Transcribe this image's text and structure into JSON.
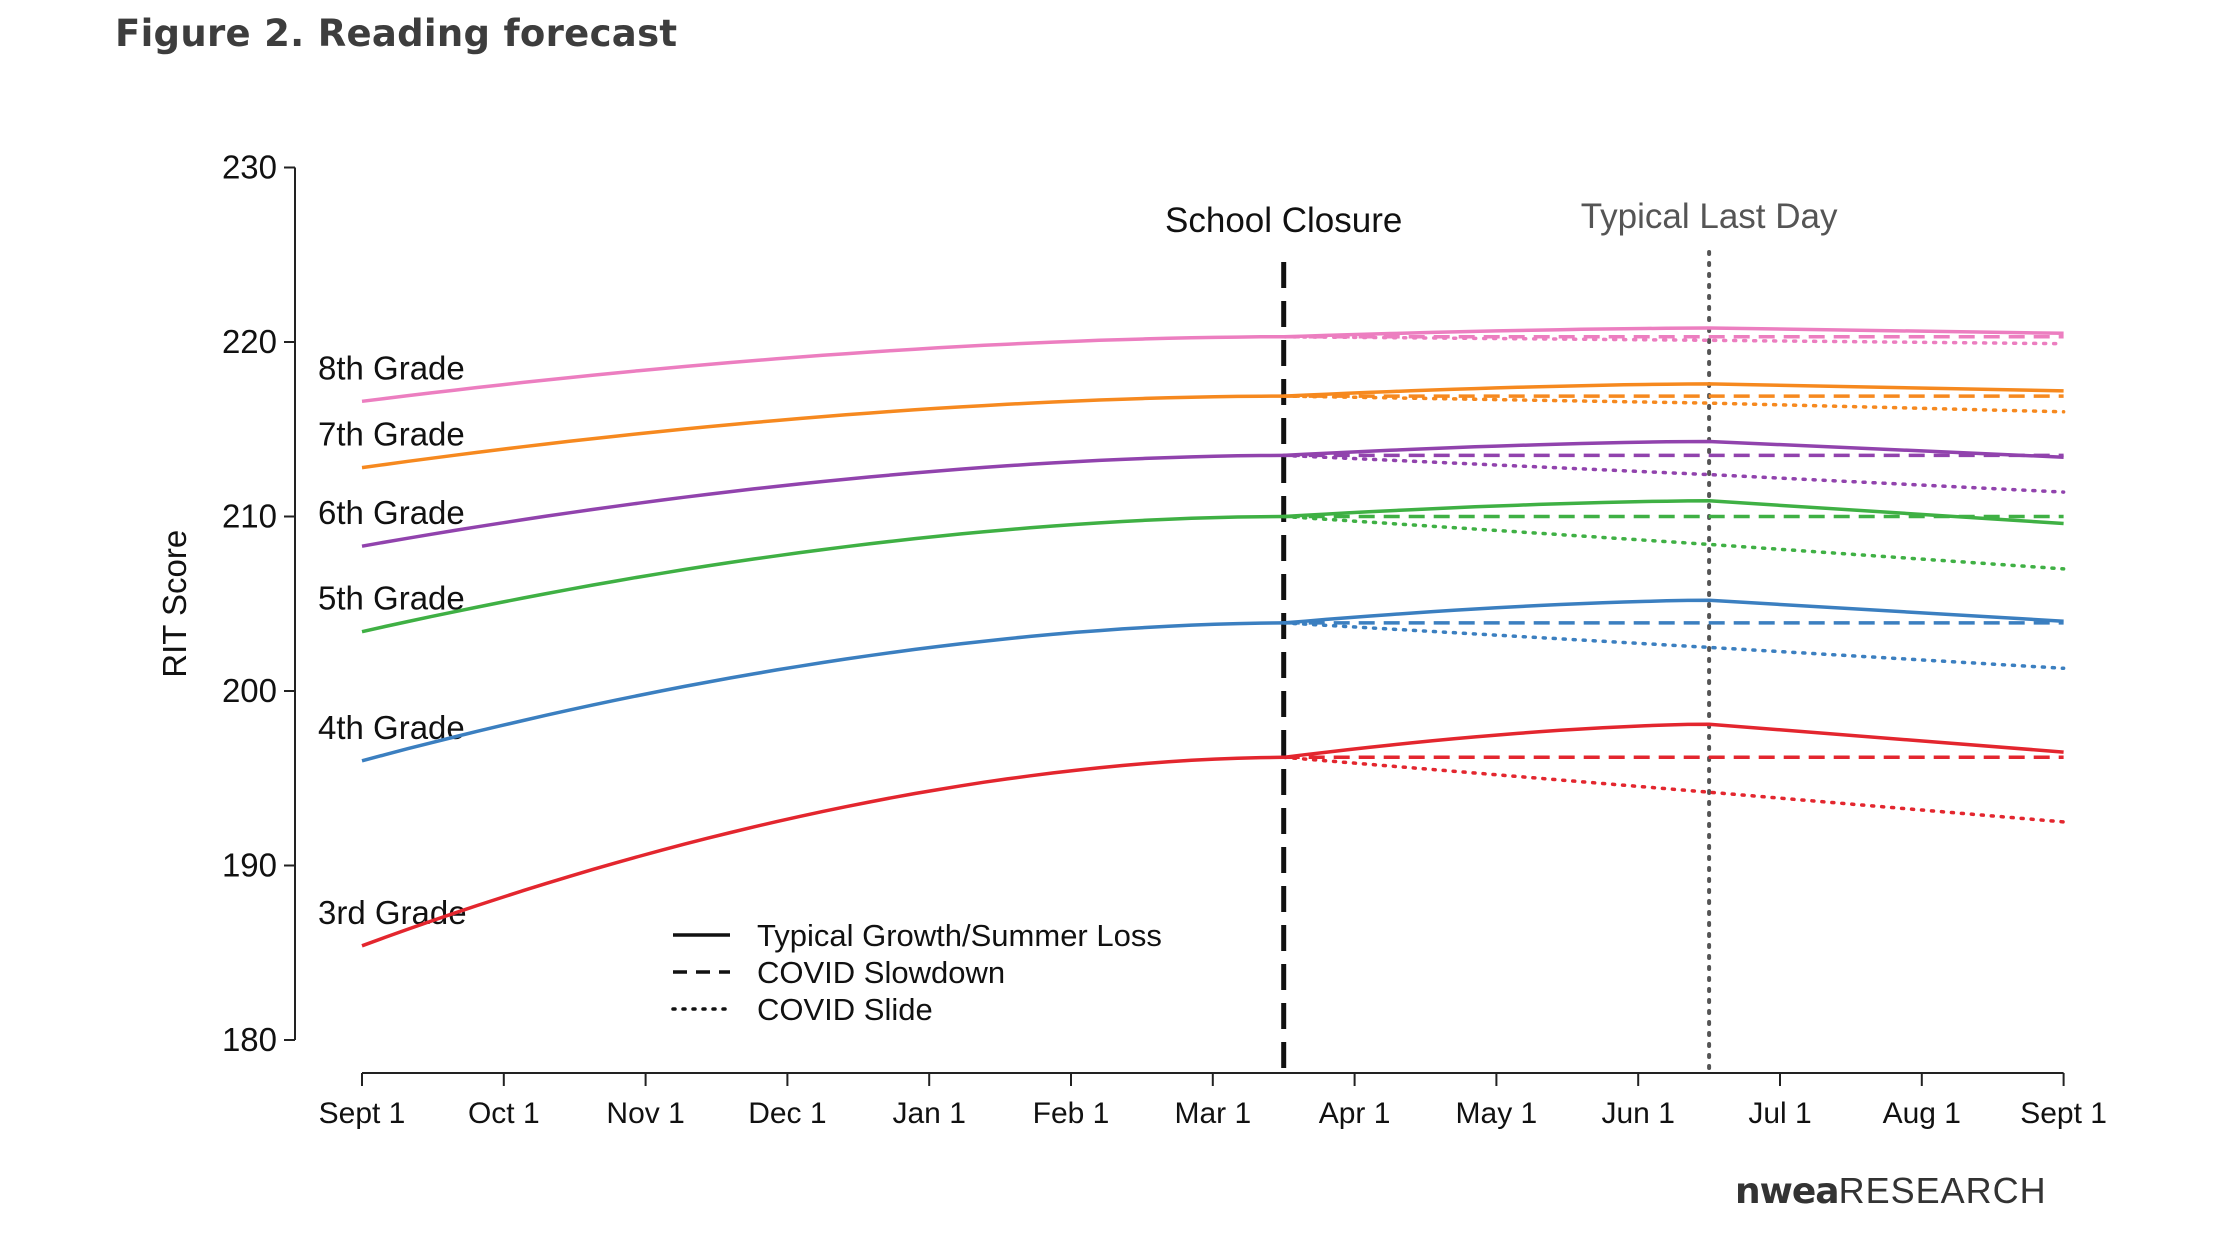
{
  "figure_title": "Figure 2. Reading forecast",
  "brand": {
    "part1": "nwea",
    "part2": "RESEARCH"
  },
  "chart_data": {
    "type": "line",
    "title": "",
    "xlabel": "",
    "ylabel": "RIT Score",
    "ylim": [
      180,
      230
    ],
    "yticks": [
      180,
      190,
      200,
      210,
      220,
      230
    ],
    "x_tick_labels": [
      "Sept 1",
      "Oct 1",
      "Nov 1",
      "Dec 1",
      "Jan 1",
      "Feb 1",
      "Mar 1",
      "Apr 1",
      "May 1",
      "Jun 1",
      "Jul 1",
      "Aug 1",
      "Sept 1"
    ],
    "x_unit": "months since Sept 1",
    "annotations": [
      {
        "label": "School Closure",
        "x": 6.5,
        "style": "dashed",
        "color": "#111111"
      },
      {
        "label": "Typical Last Day",
        "x": 9.5,
        "style": "dotted",
        "color": "#555555"
      }
    ],
    "legend": {
      "position": "bottom-center",
      "entries": [
        {
          "label": "Typical Growth/Summer Loss",
          "style": "solid"
        },
        {
          "label": "COVID Slowdown",
          "style": "dashed"
        },
        {
          "label": "COVID Slide",
          "style": "dotted"
        }
      ]
    },
    "series": [
      {
        "name": "3rd Grade",
        "color": "#e3262e",
        "start": 185.4,
        "closure": 196.2,
        "typical": [
          196.2,
          198.1,
          196.5
        ],
        "slowdown": [
          196.2,
          196.2,
          196.2
        ],
        "slide": [
          196.2,
          194.2,
          192.5
        ]
      },
      {
        "name": "4th Grade",
        "color": "#3b7fc0",
        "start": 196.0,
        "closure": 203.9,
        "typical": [
          203.9,
          205.2,
          204.0
        ],
        "slowdown": [
          203.9,
          203.9,
          203.9
        ],
        "slide": [
          203.9,
          202.5,
          201.3
        ]
      },
      {
        "name": "5th Grade",
        "color": "#3fb044",
        "start": 203.4,
        "closure": 210.0,
        "typical": [
          210.0,
          210.9,
          209.6
        ],
        "slowdown": [
          210.0,
          210.0,
          210.0
        ],
        "slide": [
          210.0,
          208.4,
          207.0
        ]
      },
      {
        "name": "6th Grade",
        "color": "#9143ad",
        "start": 208.3,
        "closure": 213.5,
        "typical": [
          213.5,
          214.3,
          213.4
        ],
        "slowdown": [
          213.5,
          213.5,
          213.5
        ],
        "slide": [
          213.5,
          212.4,
          211.4
        ]
      },
      {
        "name": "7th Grade",
        "color": "#f6891f",
        "start": 212.8,
        "closure": 216.9,
        "typical": [
          216.9,
          217.6,
          217.2
        ],
        "slowdown": [
          216.9,
          216.9,
          216.9
        ],
        "slide": [
          216.9,
          216.5,
          216.0
        ]
      },
      {
        "name": "8th Grade",
        "color": "#ec7ec0",
        "start": 216.6,
        "closure": 220.3,
        "typical": [
          220.3,
          220.8,
          220.5
        ],
        "slowdown": [
          220.3,
          220.3,
          220.3
        ],
        "slide": [
          220.3,
          220.1,
          219.9
        ]
      }
    ]
  }
}
